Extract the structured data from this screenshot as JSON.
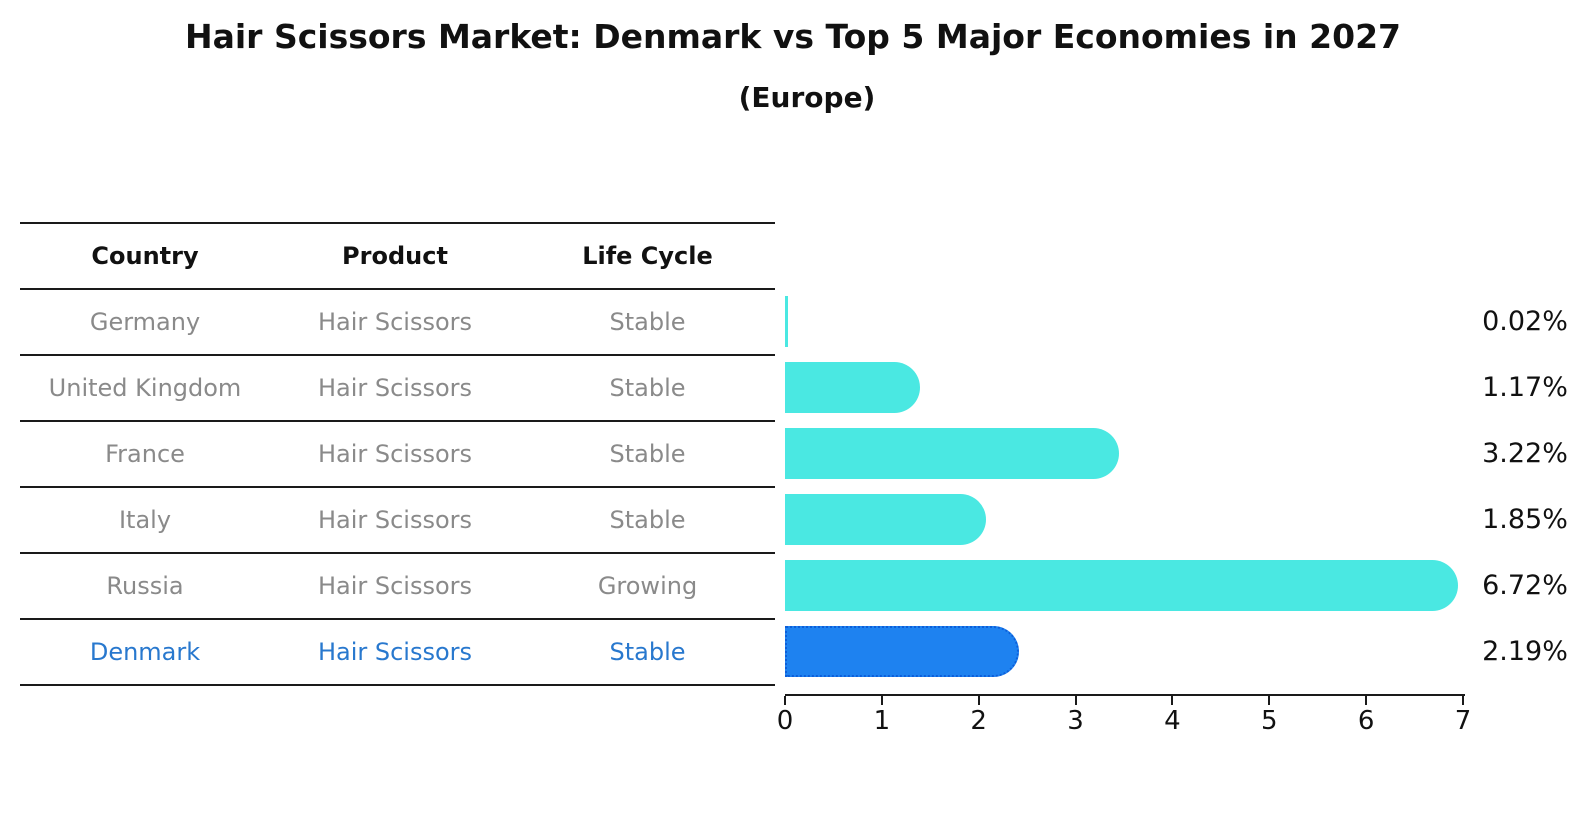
{
  "title": "Hair Scissors Market: Denmark vs Top 5 Major Economies in 2027",
  "subtitle": "(Europe)",
  "table": {
    "headers": [
      "Country",
      "Product",
      "Life Cycle"
    ],
    "rows": [
      {
        "country": "Germany",
        "product": "Hair Scissors",
        "life_cycle": "Stable",
        "highlight": false
      },
      {
        "country": "United Kingdom",
        "product": "Hair Scissors",
        "life_cycle": "Stable",
        "highlight": false
      },
      {
        "country": "France",
        "product": "Hair Scissors",
        "life_cycle": "Stable",
        "highlight": false
      },
      {
        "country": "Italy",
        "product": "Hair Scissors",
        "life_cycle": "Stable",
        "highlight": false
      },
      {
        "country": "Russia",
        "product": "Hair Scissors",
        "life_cycle": "Growing",
        "highlight": false
      },
      {
        "country": "Denmark",
        "product": "Hair Scissors",
        "life_cycle": "Stable",
        "highlight": true
      }
    ]
  },
  "chart_data": {
    "type": "bar",
    "orientation": "horizontal",
    "title": "Hair Scissors Market: Denmark vs Top 5 Major Economies in 2027",
    "subtitle": "(Europe)",
    "categories": [
      "Germany",
      "United Kingdom",
      "France",
      "Italy",
      "Russia",
      "Denmark"
    ],
    "values": [
      0.02,
      1.17,
      3.22,
      1.85,
      6.72,
      2.19
    ],
    "value_labels": [
      "0.02%",
      "1.17%",
      "3.22%",
      "1.85%",
      "6.72%",
      "2.19%"
    ],
    "xlim": [
      0,
      7
    ],
    "x_ticks": [
      0,
      1,
      2,
      3,
      4,
      5,
      6,
      7
    ],
    "grid": false,
    "legend": "none",
    "highlight_index": 5
  },
  "colors": {
    "bar": "#4ae8e2",
    "highlight_bar": "#1e82f0",
    "highlight_border": "#0d5ed9",
    "highlight_text": "#2878ce",
    "table_text": "#8a8a8a",
    "axis": "#1a1a1a",
    "text": "#111111"
  }
}
